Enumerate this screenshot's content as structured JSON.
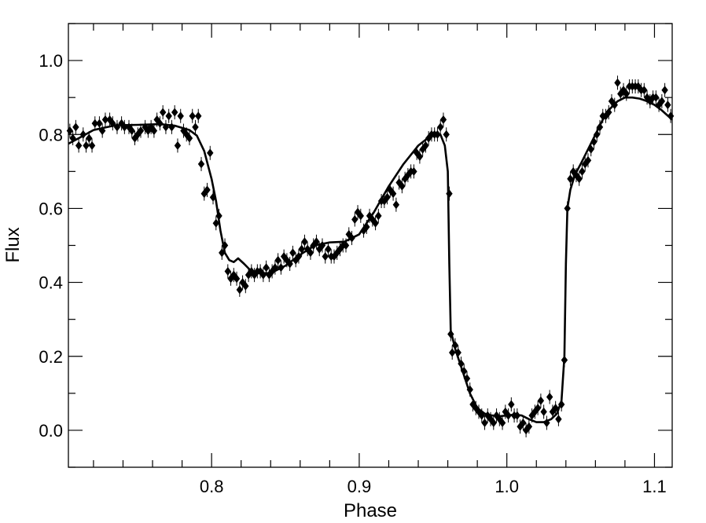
{
  "chart_data": {
    "type": "scatter",
    "title": "",
    "xlabel": "Phase",
    "ylabel": "Flux",
    "xlim": [
      0.703,
      1.112
    ],
    "ylim": [
      -0.1,
      1.1
    ],
    "x_ticks": [
      0.8,
      0.9,
      1.0,
      1.1
    ],
    "x_tick_labels": [
      "0.8",
      "0.9",
      "1.0",
      "1.1"
    ],
    "y_ticks": [
      0.0,
      0.2,
      0.4,
      0.6,
      0.8,
      1.0
    ],
    "y_tick_labels": [
      "0.0",
      "0.2",
      "0.4",
      "0.6",
      "0.8",
      "1.0"
    ],
    "grid": false,
    "colors": {
      "data": "#000000",
      "model": "#000000",
      "frame": "#000000"
    },
    "series": [
      {
        "kind": "points",
        "marker": "diamond",
        "error_bars": true,
        "points": [
          [
            0.704,
            0.81
          ],
          [
            0.706,
            0.79
          ],
          [
            0.708,
            0.82
          ],
          [
            0.71,
            0.77
          ],
          [
            0.713,
            0.8
          ],
          [
            0.715,
            0.77
          ],
          [
            0.717,
            0.79
          ],
          [
            0.719,
            0.77
          ],
          [
            0.721,
            0.83
          ],
          [
            0.724,
            0.83
          ],
          [
            0.726,
            0.81
          ],
          [
            0.728,
            0.84
          ],
          [
            0.731,
            0.84
          ],
          [
            0.733,
            0.83
          ],
          [
            0.736,
            0.82
          ],
          [
            0.739,
            0.83
          ],
          [
            0.741,
            0.82
          ],
          [
            0.744,
            0.82
          ],
          [
            0.746,
            0.81
          ],
          [
            0.748,
            0.79
          ],
          [
            0.75,
            0.8
          ],
          [
            0.752,
            0.81
          ],
          [
            0.755,
            0.82
          ],
          [
            0.757,
            0.81
          ],
          [
            0.759,
            0.82
          ],
          [
            0.761,
            0.81
          ],
          [
            0.763,
            0.84
          ],
          [
            0.765,
            0.83
          ],
          [
            0.767,
            0.86
          ],
          [
            0.769,
            0.82
          ],
          [
            0.771,
            0.85
          ],
          [
            0.773,
            0.82
          ],
          [
            0.775,
            0.86
          ],
          [
            0.777,
            0.77
          ],
          [
            0.779,
            0.85
          ],
          [
            0.781,
            0.81
          ],
          [
            0.783,
            0.8
          ],
          [
            0.785,
            0.79
          ],
          [
            0.787,
            0.85
          ],
          [
            0.789,
            0.82
          ],
          [
            0.791,
            0.85
          ],
          [
            0.793,
            0.72
          ],
          [
            0.795,
            0.64
          ],
          [
            0.797,
            0.65
          ],
          [
            0.799,
            0.75
          ],
          [
            0.801,
            0.63
          ],
          [
            0.803,
            0.56
          ],
          [
            0.805,
            0.58
          ],
          [
            0.807,
            0.48
          ],
          [
            0.809,
            0.5
          ],
          [
            0.811,
            0.43
          ],
          [
            0.813,
            0.41
          ],
          [
            0.815,
            0.42
          ],
          [
            0.817,
            0.41
          ],
          [
            0.819,
            0.38
          ],
          [
            0.821,
            0.4
          ],
          [
            0.823,
            0.39
          ],
          [
            0.825,
            0.42
          ],
          [
            0.827,
            0.43
          ],
          [
            0.829,
            0.42
          ],
          [
            0.831,
            0.43
          ],
          [
            0.833,
            0.43
          ],
          [
            0.835,
            0.42
          ],
          [
            0.837,
            0.44
          ],
          [
            0.839,
            0.42
          ],
          [
            0.841,
            0.43
          ],
          [
            0.843,
            0.44
          ],
          [
            0.845,
            0.46
          ],
          [
            0.847,
            0.44
          ],
          [
            0.849,
            0.47
          ],
          [
            0.851,
            0.46
          ],
          [
            0.853,
            0.45
          ],
          [
            0.855,
            0.48
          ],
          [
            0.857,
            0.46
          ],
          [
            0.859,
            0.47
          ],
          [
            0.861,
            0.49
          ],
          [
            0.863,
            0.51
          ],
          [
            0.865,
            0.49
          ],
          [
            0.867,
            0.48
          ],
          [
            0.869,
            0.5
          ],
          [
            0.871,
            0.51
          ],
          [
            0.873,
            0.49
          ],
          [
            0.875,
            0.5
          ],
          [
            0.877,
            0.47
          ],
          [
            0.879,
            0.49
          ],
          [
            0.881,
            0.47
          ],
          [
            0.883,
            0.47
          ],
          [
            0.885,
            0.48
          ],
          [
            0.887,
            0.49
          ],
          [
            0.889,
            0.5
          ],
          [
            0.891,
            0.5
          ],
          [
            0.893,
            0.53
          ],
          [
            0.895,
            0.52
          ],
          [
            0.897,
            0.57
          ],
          [
            0.899,
            0.59
          ],
          [
            0.901,
            0.58
          ],
          [
            0.903,
            0.54
          ],
          [
            0.905,
            0.55
          ],
          [
            0.907,
            0.58
          ],
          [
            0.909,
            0.57
          ],
          [
            0.911,
            0.56
          ],
          [
            0.913,
            0.58
          ],
          [
            0.915,
            0.62
          ],
          [
            0.917,
            0.62
          ],
          [
            0.919,
            0.63
          ],
          [
            0.921,
            0.65
          ],
          [
            0.923,
            0.64
          ],
          [
            0.925,
            0.61
          ],
          [
            0.927,
            0.67
          ],
          [
            0.929,
            0.66
          ],
          [
            0.931,
            0.68
          ],
          [
            0.933,
            0.69
          ],
          [
            0.935,
            0.7
          ],
          [
            0.937,
            0.7
          ],
          [
            0.939,
            0.75
          ],
          [
            0.941,
            0.74
          ],
          [
            0.943,
            0.76
          ],
          [
            0.945,
            0.77
          ],
          [
            0.947,
            0.79
          ],
          [
            0.949,
            0.8
          ],
          [
            0.951,
            0.8
          ],
          [
            0.953,
            0.8
          ],
          [
            0.955,
            0.82
          ],
          [
            0.957,
            0.84
          ],
          [
            0.959,
            0.8
          ],
          [
            0.961,
            0.64
          ],
          [
            0.962,
            0.26
          ],
          [
            0.963,
            0.21
          ],
          [
            0.965,
            0.23
          ],
          [
            0.967,
            0.21
          ],
          [
            0.969,
            0.18
          ],
          [
            0.971,
            0.16
          ],
          [
            0.973,
            0.14
          ],
          [
            0.975,
            0.11
          ],
          [
            0.977,
            0.07
          ],
          [
            0.979,
            0.06
          ],
          [
            0.981,
            0.05
          ],
          [
            0.983,
            0.04
          ],
          [
            0.985,
            0.02
          ],
          [
            0.987,
            0.04
          ],
          [
            0.989,
            0.03
          ],
          [
            0.991,
            0.02
          ],
          [
            0.993,
            0.04
          ],
          [
            0.995,
            0.03
          ],
          [
            0.997,
            0.02
          ],
          [
            0.999,
            0.05
          ],
          [
            1.001,
            0.04
          ],
          [
            1.003,
            0.07
          ],
          [
            1.005,
            0.04
          ],
          [
            1.007,
            0.04
          ],
          [
            1.009,
            0.01
          ],
          [
            1.011,
            0.02
          ],
          [
            1.013,
            0.0
          ],
          [
            1.015,
            0.01
          ],
          [
            1.017,
            0.04
          ],
          [
            1.019,
            0.05
          ],
          [
            1.021,
            0.06
          ],
          [
            1.023,
            0.08
          ],
          [
            1.025,
            0.05
          ],
          [
            1.027,
            0.02
          ],
          [
            1.029,
            0.09
          ],
          [
            1.031,
            0.05
          ],
          [
            1.033,
            0.06
          ],
          [
            1.035,
            0.03
          ],
          [
            1.037,
            0.07
          ],
          [
            1.039,
            0.19
          ],
          [
            1.041,
            0.6
          ],
          [
            1.043,
            0.68
          ],
          [
            1.045,
            0.7
          ],
          [
            1.047,
            0.69
          ],
          [
            1.049,
            0.68
          ],
          [
            1.051,
            0.7
          ],
          [
            1.053,
            0.72
          ],
          [
            1.055,
            0.73
          ],
          [
            1.057,
            0.76
          ],
          [
            1.059,
            0.78
          ],
          [
            1.061,
            0.8
          ],
          [
            1.063,
            0.82
          ],
          [
            1.065,
            0.85
          ],
          [
            1.067,
            0.85
          ],
          [
            1.069,
            0.86
          ],
          [
            1.071,
            0.89
          ],
          [
            1.073,
            0.88
          ],
          [
            1.075,
            0.94
          ],
          [
            1.077,
            0.91
          ],
          [
            1.079,
            0.92
          ],
          [
            1.081,
            0.91
          ],
          [
            1.083,
            0.93
          ],
          [
            1.085,
            0.93
          ],
          [
            1.087,
            0.93
          ],
          [
            1.089,
            0.93
          ],
          [
            1.091,
            0.92
          ],
          [
            1.093,
            0.92
          ],
          [
            1.095,
            0.9
          ],
          [
            1.097,
            0.89
          ],
          [
            1.099,
            0.9
          ],
          [
            1.101,
            0.9
          ],
          [
            1.103,
            0.88
          ],
          [
            1.105,
            0.89
          ],
          [
            1.107,
            0.92
          ],
          [
            1.109,
            0.88
          ],
          [
            1.111,
            0.85
          ]
        ]
      },
      {
        "kind": "line",
        "points": [
          [
            0.703,
            0.775
          ],
          [
            0.71,
            0.79
          ],
          [
            0.72,
            0.812
          ],
          [
            0.735,
            0.825
          ],
          [
            0.75,
            0.826
          ],
          [
            0.765,
            0.828
          ],
          [
            0.775,
            0.824
          ],
          [
            0.785,
            0.812
          ],
          [
            0.79,
            0.797
          ],
          [
            0.795,
            0.755
          ],
          [
            0.8,
            0.68
          ],
          [
            0.803,
            0.62
          ],
          [
            0.806,
            0.54
          ],
          [
            0.809,
            0.48
          ],
          [
            0.812,
            0.46
          ],
          [
            0.815,
            0.455
          ],
          [
            0.818,
            0.465
          ],
          [
            0.822,
            0.45
          ],
          [
            0.827,
            0.43
          ],
          [
            0.832,
            0.425
          ],
          [
            0.84,
            0.425
          ],
          [
            0.85,
            0.445
          ],
          [
            0.86,
            0.475
          ],
          [
            0.87,
            0.5
          ],
          [
            0.88,
            0.508
          ],
          [
            0.89,
            0.51
          ],
          [
            0.9,
            0.53
          ],
          [
            0.91,
            0.59
          ],
          [
            0.92,
            0.66
          ],
          [
            0.93,
            0.72
          ],
          [
            0.94,
            0.77
          ],
          [
            0.948,
            0.795
          ],
          [
            0.955,
            0.8
          ],
          [
            0.958,
            0.77
          ],
          [
            0.96,
            0.7
          ],
          [
            0.961,
            0.45
          ],
          [
            0.962,
            0.27
          ],
          [
            0.965,
            0.22
          ],
          [
            0.97,
            0.16
          ],
          [
            0.975,
            0.1
          ],
          [
            0.98,
            0.06
          ],
          [
            0.985,
            0.045
          ],
          [
            0.99,
            0.04
          ],
          [
            0.995,
            0.038
          ],
          [
            1.0,
            0.04
          ],
          [
            1.005,
            0.042
          ],
          [
            1.01,
            0.04
          ],
          [
            1.015,
            0.03
          ],
          [
            1.02,
            0.022
          ],
          [
            1.025,
            0.022
          ],
          [
            1.03,
            0.03
          ],
          [
            1.034,
            0.045
          ],
          [
            1.037,
            0.08
          ],
          [
            1.039,
            0.2
          ],
          [
            1.04,
            0.45
          ],
          [
            1.041,
            0.6
          ],
          [
            1.043,
            0.65
          ],
          [
            1.046,
            0.69
          ],
          [
            1.05,
            0.72
          ],
          [
            1.055,
            0.76
          ],
          [
            1.06,
            0.8
          ],
          [
            1.065,
            0.84
          ],
          [
            1.07,
            0.87
          ],
          [
            1.075,
            0.89
          ],
          [
            1.08,
            0.9
          ],
          [
            1.085,
            0.9
          ],
          [
            1.09,
            0.897
          ],
          [
            1.095,
            0.89
          ],
          [
            1.1,
            0.88
          ],
          [
            1.105,
            0.865
          ],
          [
            1.112,
            0.84
          ]
        ]
      }
    ]
  }
}
